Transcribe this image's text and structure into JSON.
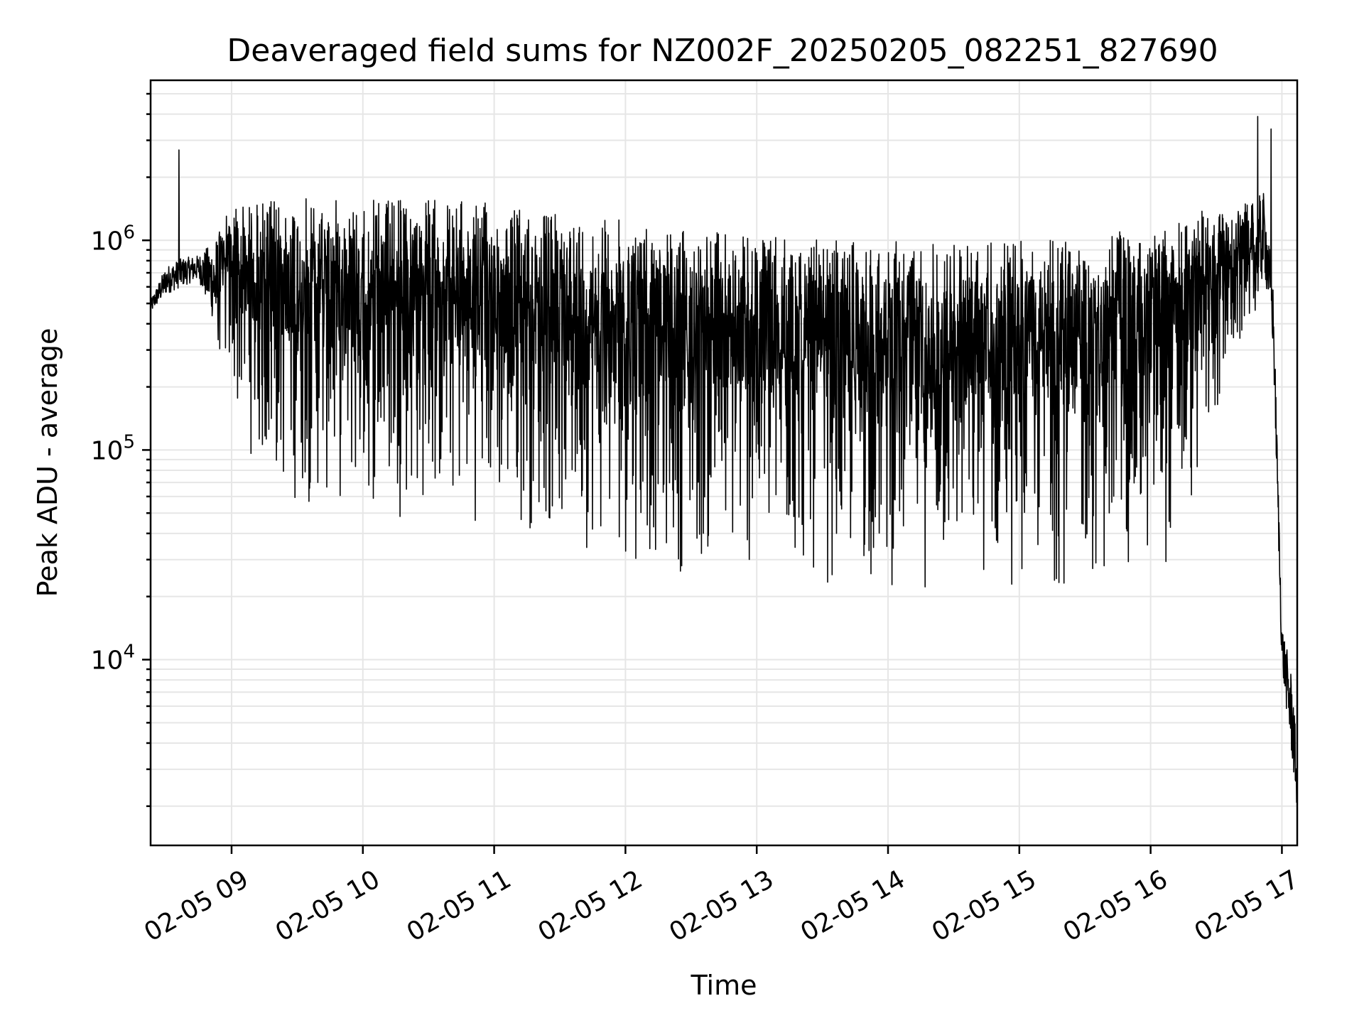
{
  "chart_data": {
    "type": "line",
    "title": "Deaveraged field sums for NZ002F_20250205_082251_827690",
    "xlabel": "Time",
    "ylabel": "Peak ADU - average",
    "yscale": "log",
    "grid": true,
    "xlim": [
      "02-05 08:23",
      "02-05 17:07"
    ],
    "ylim": [
      1300,
      5800000
    ],
    "x_ticks": [
      "02-05 09",
      "02-05 10",
      "02-05 11",
      "02-05 12",
      "02-05 13",
      "02-05 14",
      "02-05 15",
      "02-05 16",
      "02-05 17"
    ],
    "y_ticks": [
      {
        "value": 10000,
        "base": "10",
        "exp": "4"
      },
      {
        "value": 100000,
        "base": "10",
        "exp": "5"
      },
      {
        "value": 1000000,
        "base": "10",
        "exp": "6"
      }
    ],
    "series": [
      {
        "color": "#000000",
        "envelope": {
          "x": [
            "02-05 08:23",
            "02-05 08:30",
            "02-05 08:37",
            "02-05 08:45",
            "02-05 08:52",
            "02-05 09:00",
            "02-05 09:15",
            "02-05 09:30",
            "02-05 10:00",
            "02-05 10:30",
            "02-05 11:00",
            "02-05 11:30",
            "02-05 12:00",
            "02-05 12:30",
            "02-05 13:00",
            "02-05 13:30",
            "02-05 14:00",
            "02-05 14:30",
            "02-05 15:00",
            "02-05 15:30",
            "02-05 16:00",
            "02-05 16:15",
            "02-05 16:30",
            "02-05 16:45",
            "02-05 16:52",
            "02-05 16:56",
            "02-05 17:00",
            "02-05 17:05",
            "02-05 17:07"
          ],
          "upper": [
            520000,
            750000,
            820000,
            850000,
            1000000,
            1500000,
            1550000,
            1600000,
            1550000,
            1600000,
            1500000,
            1350000,
            1250000,
            1150000,
            1050000,
            1000000,
            1000000,
            1000000,
            1000000,
            1050000,
            1150000,
            1300000,
            1450000,
            1500000,
            1700000,
            600000,
            15000,
            8000,
            3000
          ],
          "lower": [
            450000,
            550000,
            600000,
            650000,
            400000,
            150000,
            60000,
            50000,
            48000,
            45000,
            42000,
            35000,
            28000,
            24000,
            22000,
            21000,
            20000,
            20000,
            20000,
            21000,
            22000,
            30000,
            120000,
            350000,
            700000,
            300000,
            9000,
            3000,
            1900
          ]
        },
        "spikes": [
          {
            "x": "02-05 08:36",
            "y": 2700000
          },
          {
            "x": "02-05 16:49",
            "y": 3900000
          },
          {
            "x": "02-05 16:55",
            "y": 3400000
          }
        ]
      }
    ]
  }
}
